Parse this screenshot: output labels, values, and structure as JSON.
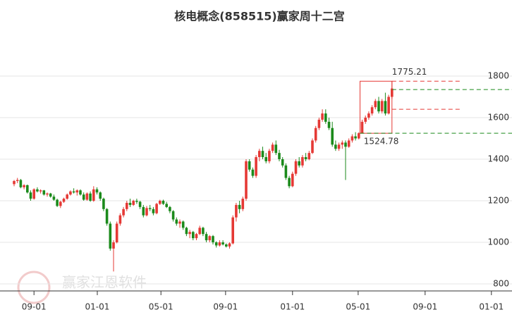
{
  "chart_data": {
    "type": "candlestick",
    "title": "核电概念(858515)赢家周十二宫",
    "watermark": "赢家江恩软件",
    "up_color": "#e53935",
    "down_color": "#1b8a1b",
    "xlim": [
      -0.5,
      150
    ],
    "ylim": [
      775,
      2010
    ],
    "yticks": [
      800,
      1000,
      1200,
      1400,
      1600,
      1800
    ],
    "xticks": [
      {
        "value": 6,
        "label": "09-01"
      },
      {
        "value": 25.1,
        "label": "01-01"
      },
      {
        "value": 44.3,
        "label": "05-01"
      },
      {
        "value": 63.8,
        "label": "09-01"
      },
      {
        "value": 84,
        "label": "01-01"
      },
      {
        "value": 103.8,
        "label": "05-01"
      },
      {
        "value": 124,
        "label": "09-01"
      },
      {
        "value": 144,
        "label": "01-01"
      }
    ],
    "grid": true,
    "high": 1775.21,
    "low": 1524.78,
    "levels": [
      {
        "value": 1775.21,
        "color": "#e53935"
      },
      {
        "value": 1735,
        "color": "#1b8a1b"
      },
      {
        "value": 1640,
        "color": "#e53935"
      },
      {
        "value": 1524.78,
        "color": "#1b8a1b"
      }
    ],
    "candles": [
      [
        1280,
        1300,
        1270,
        1295
      ],
      [
        1295,
        1310,
        1285,
        1300
      ],
      [
        1300,
        1305,
        1260,
        1265
      ],
      [
        1265,
        1280,
        1255,
        1275
      ],
      [
        1275,
        1278,
        1235,
        1240
      ],
      [
        1240,
        1250,
        1200,
        1210
      ],
      [
        1210,
        1260,
        1205,
        1255
      ],
      [
        1255,
        1265,
        1240,
        1245
      ],
      [
        1245,
        1255,
        1235,
        1250
      ],
      [
        1250,
        1252,
        1225,
        1230
      ],
      [
        1230,
        1240,
        1220,
        1235
      ],
      [
        1235,
        1238,
        1215,
        1220
      ],
      [
        1220,
        1230,
        1200,
        1205
      ],
      [
        1205,
        1210,
        1170,
        1175
      ],
      [
        1175,
        1200,
        1165,
        1195
      ],
      [
        1195,
        1215,
        1190,
        1210
      ],
      [
        1210,
        1235,
        1205,
        1230
      ],
      [
        1230,
        1250,
        1225,
        1245
      ],
      [
        1245,
        1260,
        1235,
        1240
      ],
      [
        1240,
        1255,
        1225,
        1250
      ],
      [
        1250,
        1255,
        1225,
        1230
      ],
      [
        1230,
        1240,
        1200,
        1205
      ],
      [
        1205,
        1240,
        1200,
        1235
      ],
      [
        1235,
        1245,
        1195,
        1200
      ],
      [
        1200,
        1270,
        1195,
        1255
      ],
      [
        1255,
        1265,
        1230,
        1240
      ],
      [
        1240,
        1245,
        1200,
        1210
      ],
      [
        1210,
        1215,
        1150,
        1160
      ],
      [
        1160,
        1165,
        1080,
        1090
      ],
      [
        1090,
        1100,
        960,
        970
      ],
      [
        970,
        1010,
        860,
        1000
      ],
      [
        1000,
        1100,
        995,
        1090
      ],
      [
        1090,
        1140,
        1080,
        1130
      ],
      [
        1130,
        1170,
        1120,
        1160
      ],
      [
        1160,
        1200,
        1150,
        1190
      ],
      [
        1190,
        1210,
        1170,
        1180
      ],
      [
        1180,
        1205,
        1175,
        1200
      ],
      [
        1200,
        1210,
        1185,
        1195
      ],
      [
        1195,
        1200,
        1160,
        1170
      ],
      [
        1170,
        1180,
        1120,
        1130
      ],
      [
        1130,
        1175,
        1125,
        1165
      ],
      [
        1165,
        1180,
        1150,
        1160
      ],
      [
        1160,
        1170,
        1130,
        1140
      ],
      [
        1140,
        1190,
        1135,
        1185
      ],
      [
        1185,
        1205,
        1180,
        1200
      ],
      [
        1200,
        1205,
        1180,
        1185
      ],
      [
        1185,
        1195,
        1165,
        1170
      ],
      [
        1170,
        1175,
        1140,
        1150
      ],
      [
        1150,
        1155,
        1100,
        1110
      ],
      [
        1110,
        1120,
        1080,
        1090
      ],
      [
        1090,
        1110,
        1070,
        1100
      ],
      [
        1100,
        1105,
        1060,
        1070
      ],
      [
        1070,
        1075,
        1030,
        1040
      ],
      [
        1040,
        1060,
        1020,
        1050
      ],
      [
        1050,
        1055,
        1010,
        1020
      ],
      [
        1020,
        1045,
        1010,
        1040
      ],
      [
        1040,
        1080,
        1035,
        1070
      ],
      [
        1070,
        1075,
        1030,
        1040
      ],
      [
        1040,
        1050,
        1000,
        1010
      ],
      [
        1010,
        1035,
        1000,
        1030
      ],
      [
        1030,
        1035,
        990,
        1000
      ],
      [
        1000,
        1005,
        975,
        985
      ],
      [
        985,
        1010,
        980,
        1000
      ],
      [
        1000,
        1010,
        985,
        990
      ],
      [
        990,
        995,
        975,
        980
      ],
      [
        980,
        1000,
        970,
        995
      ],
      [
        995,
        1130,
        990,
        1120
      ],
      [
        1120,
        1190,
        1100,
        1180
      ],
      [
        1180,
        1200,
        1140,
        1160
      ],
      [
        1160,
        1220,
        1150,
        1210
      ],
      [
        1210,
        1400,
        1200,
        1390
      ],
      [
        1390,
        1400,
        1340,
        1350
      ],
      [
        1350,
        1360,
        1310,
        1320
      ],
      [
        1320,
        1420,
        1310,
        1410
      ],
      [
        1410,
        1450,
        1390,
        1440
      ],
      [
        1440,
        1460,
        1400,
        1410
      ],
      [
        1410,
        1430,
        1380,
        1390
      ],
      [
        1390,
        1450,
        1380,
        1440
      ],
      [
        1440,
        1480,
        1430,
        1470
      ],
      [
        1470,
        1490,
        1420,
        1430
      ],
      [
        1430,
        1445,
        1390,
        1400
      ],
      [
        1400,
        1410,
        1360,
        1370
      ],
      [
        1370,
        1380,
        1300,
        1310
      ],
      [
        1310,
        1320,
        1260,
        1270
      ],
      [
        1270,
        1340,
        1265,
        1330
      ],
      [
        1330,
        1400,
        1320,
        1390
      ],
      [
        1390,
        1410,
        1360,
        1370
      ],
      [
        1370,
        1420,
        1360,
        1410
      ],
      [
        1410,
        1430,
        1390,
        1400
      ],
      [
        1400,
        1440,
        1395,
        1430
      ],
      [
        1430,
        1500,
        1425,
        1490
      ],
      [
        1490,
        1560,
        1480,
        1550
      ],
      [
        1550,
        1600,
        1540,
        1590
      ],
      [
        1590,
        1640,
        1580,
        1620
      ],
      [
        1620,
        1640,
        1570,
        1580
      ],
      [
        1580,
        1600,
        1540,
        1550
      ],
      [
        1550,
        1580,
        1460,
        1470
      ],
      [
        1470,
        1490,
        1440,
        1450
      ],
      [
        1450,
        1480,
        1440,
        1470
      ],
      [
        1470,
        1490,
        1450,
        1480
      ],
      [
        1480,
        1490,
        1300,
        1460
      ],
      [
        1460,
        1500,
        1455,
        1490
      ],
      [
        1490,
        1520,
        1480,
        1510
      ],
      [
        1510,
        1530,
        1490,
        1500
      ],
      [
        1500,
        1530,
        1495,
        1525
      ],
      [
        1525,
        1590,
        1524.78,
        1580
      ],
      [
        1580,
        1610,
        1570,
        1600
      ],
      [
        1600,
        1630,
        1590,
        1620
      ],
      [
        1620,
        1660,
        1610,
        1650
      ],
      [
        1650,
        1690,
        1640,
        1680
      ],
      [
        1680,
        1700,
        1620,
        1630
      ],
      [
        1630,
        1690,
        1620,
        1680
      ],
      [
        1680,
        1720,
        1610,
        1620
      ],
      [
        1620,
        1710,
        1615,
        1700
      ],
      [
        1700,
        1775.21,
        1690,
        1740
      ]
    ]
  }
}
